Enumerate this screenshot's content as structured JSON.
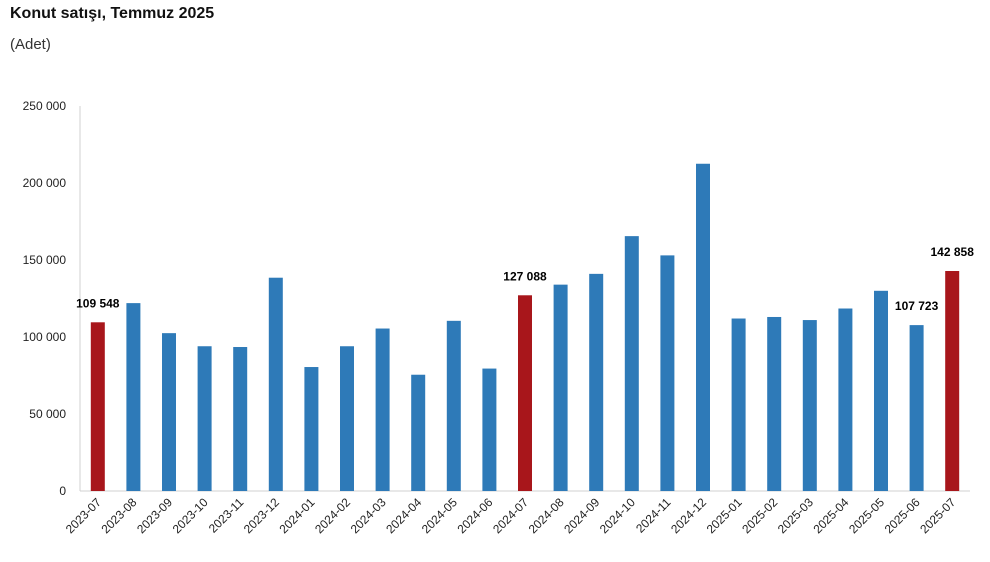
{
  "chart_data": {
    "type": "bar",
    "title": "Konut satışı, Temmuz 2025",
    "subtitle": "(Adet)",
    "xlabel": "",
    "ylabel": "",
    "ylim": [
      0,
      250000
    ],
    "yticks": [
      0,
      50000,
      100000,
      150000,
      200000,
      250000
    ],
    "ytick_labels": [
      "0",
      "50 000",
      "100 000",
      "150 000",
      "200 000",
      "250 000"
    ],
    "categories": [
      "2023-07",
      "2023-08",
      "2023-09",
      "2023-10",
      "2023-11",
      "2023-12",
      "2024-01",
      "2024-02",
      "2024-03",
      "2024-04",
      "2024-05",
      "2024-06",
      "2024-07",
      "2024-08",
      "2024-09",
      "2024-10",
      "2024-11",
      "2024-12",
      "2025-01",
      "2025-02",
      "2025-03",
      "2025-04",
      "2025-05",
      "2025-06",
      "2025-07"
    ],
    "values": [
      109548,
      122000,
      102500,
      94000,
      93500,
      138500,
      80500,
      94000,
      105500,
      75500,
      110500,
      79500,
      127088,
      134000,
      141000,
      165500,
      153000,
      212500,
      112000,
      113000,
      111000,
      118500,
      130000,
      107723,
      142858
    ],
    "highlight_indices": [
      0,
      12,
      24
    ],
    "data_labels": [
      {
        "index": 0,
        "text": "109 548"
      },
      {
        "index": 12,
        "text": "127 088"
      },
      {
        "index": 23,
        "text": "107 723"
      },
      {
        "index": 24,
        "text": "142 858"
      }
    ],
    "colors": {
      "default": "#2e7ab8",
      "highlight": "#a8161b",
      "axis": "#d0d0d0"
    },
    "grid": false,
    "legend": "none"
  }
}
